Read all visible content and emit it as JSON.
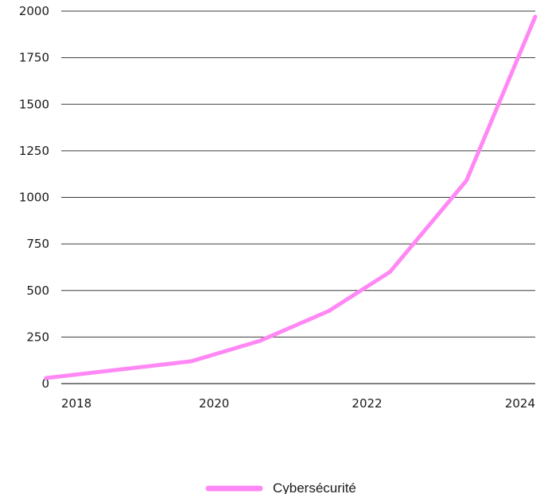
{
  "chart_data": {
    "type": "line",
    "title": "",
    "xlabel": "",
    "ylabel": "",
    "x_ticks": [
      "2018",
      "2020",
      "2022",
      "2024"
    ],
    "y_ticks": [
      "0",
      "250",
      "500",
      "750",
      "1000",
      "1250",
      "1500",
      "1750",
      "2000"
    ],
    "xlim": [
      2018,
      2024.2
    ],
    "ylim": [
      0,
      2000
    ],
    "grid": "horizontal",
    "legend_position": "bottom-center",
    "series": [
      {
        "name": "Cybersécurité",
        "color": "#ff88f5",
        "x": [
          2017.8,
          2019.7,
          2020.6,
          2021.5,
          2022.3,
          2023.3,
          2024.2
        ],
        "y": [
          30,
          120,
          230,
          390,
          600,
          1090,
          1970
        ]
      }
    ]
  }
}
